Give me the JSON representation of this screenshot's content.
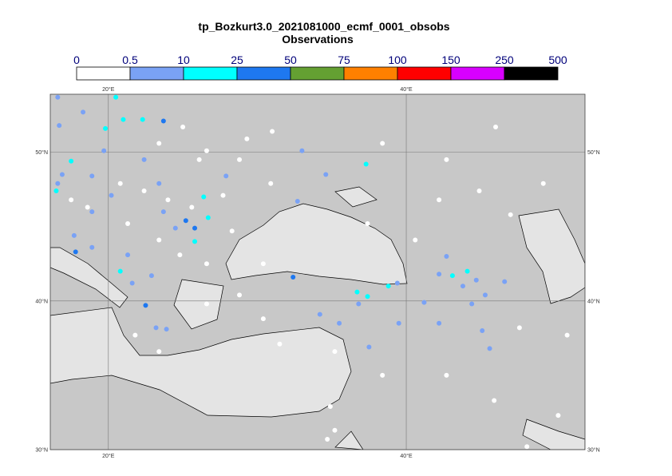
{
  "title": "tp_Bozkurt3.0_2021081000_ecmf_0001_obsobs",
  "subtitle": "Observations",
  "colorbar": {
    "bounds": [
      0,
      0.5,
      10,
      25,
      50,
      75,
      100,
      150,
      250,
      500
    ],
    "colors": [
      "#ffffff",
      "#7aa2f5",
      "#00ffff",
      "#1e78f0",
      "#64a032",
      "#ff8000",
      "#ff0000",
      "#d800ff",
      "#000000"
    ]
  },
  "map": {
    "xlim": [
      16.1,
      52
    ],
    "ylim": [
      30,
      53.9
    ],
    "lon_ticks": [
      {
        "value": 20,
        "label": "20°E"
      },
      {
        "value": 40,
        "label": "40°E"
      }
    ],
    "lat_ticks": [
      {
        "value": 30,
        "label": "30°N"
      },
      {
        "value": 40,
        "label": "40°N"
      },
      {
        "value": 50,
        "label": "50°N"
      }
    ]
  },
  "observations": [
    {
      "lon": 23.7,
      "lat": 52.1,
      "value": 30
    },
    {
      "lon": 25.2,
      "lat": 45.4,
      "value": 30
    },
    {
      "lon": 25.8,
      "lat": 44.9,
      "value": 30
    },
    {
      "lon": 32.4,
      "lat": 41.6,
      "value": 30
    },
    {
      "lon": 22.5,
      "lat": 39.7,
      "value": 30
    },
    {
      "lon": 17.8,
      "lat": 43.3,
      "value": 30
    },
    {
      "lon": 21.0,
      "lat": 52.2,
      "value": 15
    },
    {
      "lon": 22.3,
      "lat": 52.2,
      "value": 15
    },
    {
      "lon": 17.5,
      "lat": 49.4,
      "value": 15
    },
    {
      "lon": 20.5,
      "lat": 53.7,
      "value": 15
    },
    {
      "lon": 16.5,
      "lat": 47.4,
      "value": 15
    },
    {
      "lon": 37.3,
      "lat": 49.2,
      "value": 15
    },
    {
      "lon": 26.4,
      "lat": 47.0,
      "value": 15
    },
    {
      "lon": 26.7,
      "lat": 45.6,
      "value": 15
    },
    {
      "lon": 25.8,
      "lat": 44.0,
      "value": 15
    },
    {
      "lon": 36.7,
      "lat": 40.6,
      "value": 15
    },
    {
      "lon": 37.4,
      "lat": 40.3,
      "value": 15
    },
    {
      "lon": 38.8,
      "lat": 41.0,
      "value": 15
    },
    {
      "lon": 43.1,
      "lat": 41.7,
      "value": 15
    },
    {
      "lon": 44.1,
      "lat": 42.0,
      "value": 15
    },
    {
      "lon": 20.8,
      "lat": 42.0,
      "value": 15
    },
    {
      "lon": 19.8,
      "lat": 51.6,
      "value": 15
    },
    {
      "lon": 16.6,
      "lat": 53.7,
      "value": 2
    },
    {
      "lon": 18.3,
      "lat": 52.7,
      "value": 2
    },
    {
      "lon": 16.7,
      "lat": 51.8,
      "value": 2
    },
    {
      "lon": 19.7,
      "lat": 50.1,
      "value": 2
    },
    {
      "lon": 18.9,
      "lat": 48.4,
      "value": 2
    },
    {
      "lon": 16.6,
      "lat": 47.9,
      "value": 2
    },
    {
      "lon": 16.9,
      "lat": 48.5,
      "value": 2
    },
    {
      "lon": 17.7,
      "lat": 44.4,
      "value": 2
    },
    {
      "lon": 18.9,
      "lat": 43.6,
      "value": 2
    },
    {
      "lon": 21.6,
      "lat": 41.2,
      "value": 2
    },
    {
      "lon": 22.9,
      "lat": 41.7,
      "value": 2
    },
    {
      "lon": 23.7,
      "lat": 46.0,
      "value": 2
    },
    {
      "lon": 24.5,
      "lat": 44.9,
      "value": 2
    },
    {
      "lon": 23.2,
      "lat": 38.2,
      "value": 2
    },
    {
      "lon": 23.9,
      "lat": 38.1,
      "value": 2
    },
    {
      "lon": 33.0,
      "lat": 50.1,
      "value": 2
    },
    {
      "lon": 34.6,
      "lat": 48.5,
      "value": 2
    },
    {
      "lon": 32.7,
      "lat": 46.7,
      "value": 2
    },
    {
      "lon": 34.2,
      "lat": 39.1,
      "value": 2
    },
    {
      "lon": 35.5,
      "lat": 38.5,
      "value": 2
    },
    {
      "lon": 36.8,
      "lat": 39.8,
      "value": 2
    },
    {
      "lon": 37.5,
      "lat": 36.9,
      "value": 2
    },
    {
      "lon": 39.4,
      "lat": 41.2,
      "value": 2
    },
    {
      "lon": 41.2,
      "lat": 39.9,
      "value": 2
    },
    {
      "lon": 42.7,
      "lat": 43.0,
      "value": 2
    },
    {
      "lon": 42.2,
      "lat": 41.8,
      "value": 2
    },
    {
      "lon": 43.8,
      "lat": 41.0,
      "value": 2
    },
    {
      "lon": 44.7,
      "lat": 41.4,
      "value": 2
    },
    {
      "lon": 46.6,
      "lat": 41.3,
      "value": 2
    },
    {
      "lon": 45.3,
      "lat": 40.4,
      "value": 2
    },
    {
      "lon": 44.4,
      "lat": 39.8,
      "value": 2
    },
    {
      "lon": 42.2,
      "lat": 38.5,
      "value": 2
    },
    {
      "lon": 45.1,
      "lat": 38.0,
      "value": 2
    },
    {
      "lon": 45.6,
      "lat": 36.8,
      "value": 2
    },
    {
      "lon": 39.5,
      "lat": 38.5,
      "value": 2
    },
    {
      "lon": 22.4,
      "lat": 49.5,
      "value": 2
    },
    {
      "lon": 23.4,
      "lat": 47.9,
      "value": 2
    },
    {
      "lon": 27.9,
      "lat": 48.4,
      "value": 2
    },
    {
      "lon": 21.3,
      "lat": 43.1,
      "value": 2
    },
    {
      "lon": 20.2,
      "lat": 47.1,
      "value": 2
    },
    {
      "lon": 18.9,
      "lat": 46.0,
      "value": 2
    },
    {
      "lon": 23.4,
      "lat": 50.6,
      "value": 0
    },
    {
      "lon": 25.0,
      "lat": 51.7,
      "value": 0
    },
    {
      "lon": 26.6,
      "lat": 50.1,
      "value": 0
    },
    {
      "lon": 28.8,
      "lat": 49.5,
      "value": 0
    },
    {
      "lon": 30.9,
      "lat": 47.9,
      "value": 0
    },
    {
      "lon": 29.3,
      "lat": 50.9,
      "value": 0
    },
    {
      "lon": 31.0,
      "lat": 51.4,
      "value": 0
    },
    {
      "lon": 22.4,
      "lat": 47.4,
      "value": 0
    },
    {
      "lon": 24.0,
      "lat": 46.8,
      "value": 0
    },
    {
      "lon": 25.6,
      "lat": 46.3,
      "value": 0
    },
    {
      "lon": 23.4,
      "lat": 44.1,
      "value": 0
    },
    {
      "lon": 21.3,
      "lat": 45.2,
      "value": 0
    },
    {
      "lon": 20.8,
      "lat": 47.9,
      "value": 0
    },
    {
      "lon": 18.6,
      "lat": 46.3,
      "value": 0
    },
    {
      "lon": 17.5,
      "lat": 46.8,
      "value": 0
    },
    {
      "lon": 24.8,
      "lat": 43.1,
      "value": 0
    },
    {
      "lon": 26.6,
      "lat": 42.5,
      "value": 0
    },
    {
      "lon": 21.8,
      "lat": 37.7,
      "value": 0
    },
    {
      "lon": 23.4,
      "lat": 36.6,
      "value": 0
    },
    {
      "lon": 30.4,
      "lat": 38.8,
      "value": 0
    },
    {
      "lon": 31.5,
      "lat": 37.1,
      "value": 0
    },
    {
      "lon": 35.2,
      "lat": 36.6,
      "value": 0
    },
    {
      "lon": 38.4,
      "lat": 35.0,
      "value": 0
    },
    {
      "lon": 42.7,
      "lat": 35.0,
      "value": 0
    },
    {
      "lon": 45.9,
      "lat": 33.3,
      "value": 0
    },
    {
      "lon": 50.2,
      "lat": 32.3,
      "value": 0
    },
    {
      "lon": 48.1,
      "lat": 30.2,
      "value": 0
    },
    {
      "lon": 34.9,
      "lat": 32.9,
      "value": 0
    },
    {
      "lon": 35.2,
      "lat": 31.3,
      "value": 0
    },
    {
      "lon": 34.7,
      "lat": 30.7,
      "value": 0
    },
    {
      "lon": 47.0,
      "lat": 45.8,
      "value": 0
    },
    {
      "lon": 49.2,
      "lat": 47.9,
      "value": 0
    },
    {
      "lon": 44.9,
      "lat": 47.4,
      "value": 0
    },
    {
      "lon": 40.6,
      "lat": 44.1,
      "value": 0
    },
    {
      "lon": 37.4,
      "lat": 45.2,
      "value": 0
    },
    {
      "lon": 42.2,
      "lat": 46.8,
      "value": 0
    },
    {
      "lon": 50.8,
      "lat": 37.7,
      "value": 0
    },
    {
      "lon": 47.6,
      "lat": 38.2,
      "value": 0
    },
    {
      "lon": 46.0,
      "lat": 51.7,
      "value": 0
    },
    {
      "lon": 42.7,
      "lat": 49.5,
      "value": 0
    },
    {
      "lon": 38.4,
      "lat": 50.6,
      "value": 0
    },
    {
      "lon": 26.1,
      "lat": 49.5,
      "value": 0
    },
    {
      "lon": 27.7,
      "lat": 47.1,
      "value": 0
    },
    {
      "lon": 28.3,
      "lat": 44.7,
      "value": 0
    },
    {
      "lon": 30.4,
      "lat": 42.5,
      "value": 0
    },
    {
      "lon": 28.8,
      "lat": 40.4,
      "value": 0
    },
    {
      "lon": 26.6,
      "lat": 39.8,
      "value": 0
    }
  ]
}
